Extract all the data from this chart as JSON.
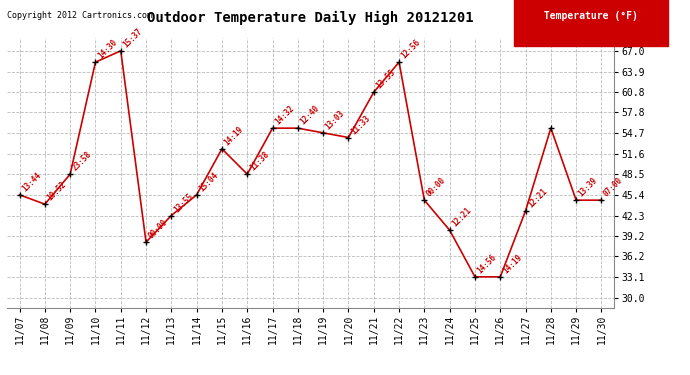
{
  "title": "Outdoor Temperature Daily High 20121201",
  "dates": [
    "11/07",
    "11/08",
    "11/09",
    "11/10",
    "11/11",
    "11/12",
    "11/13",
    "11/14",
    "11/15",
    "11/16",
    "11/17",
    "11/18",
    "11/19",
    "11/20",
    "11/21",
    "11/22",
    "11/23",
    "11/24",
    "11/25",
    "11/26",
    "11/27",
    "11/28",
    "11/29",
    "11/30"
  ],
  "temperatures": [
    45.4,
    44.0,
    48.5,
    65.3,
    67.0,
    38.3,
    42.3,
    45.4,
    52.3,
    48.5,
    55.4,
    55.4,
    54.7,
    54.0,
    60.8,
    65.3,
    44.6,
    40.1,
    33.1,
    33.1,
    43.0,
    55.4,
    44.6,
    44.6
  ],
  "time_labels": [
    "13:44",
    "10:52",
    "23:58",
    "14:30",
    "15:37",
    "00:00",
    "13:55",
    "15:04",
    "14:19",
    "11:38",
    "14:32",
    "12:40",
    "13:03",
    "11:33",
    "13:55",
    "12:56",
    "00:00",
    "12:21",
    "14:56",
    "14:19",
    "12:21",
    "",
    "13:39",
    "07:00"
  ],
  "yticks": [
    30.0,
    33.1,
    36.2,
    39.2,
    42.3,
    45.4,
    48.5,
    51.6,
    54.7,
    57.8,
    60.8,
    63.9,
    67.0
  ],
  "ylim": [
    28.5,
    69.0
  ],
  "line_color": "#cc0000",
  "marker_color": "#000000",
  "legend_text": "Temperature (°F)",
  "legend_bg": "#cc0000",
  "legend_fg": "#ffffff",
  "copyright_text": "Copyright 2012 Cartronics.com",
  "bg_color": "#ffffff",
  "grid_color": "#aaaaaa",
  "figwidth": 6.9,
  "figheight": 3.75,
  "dpi": 100
}
